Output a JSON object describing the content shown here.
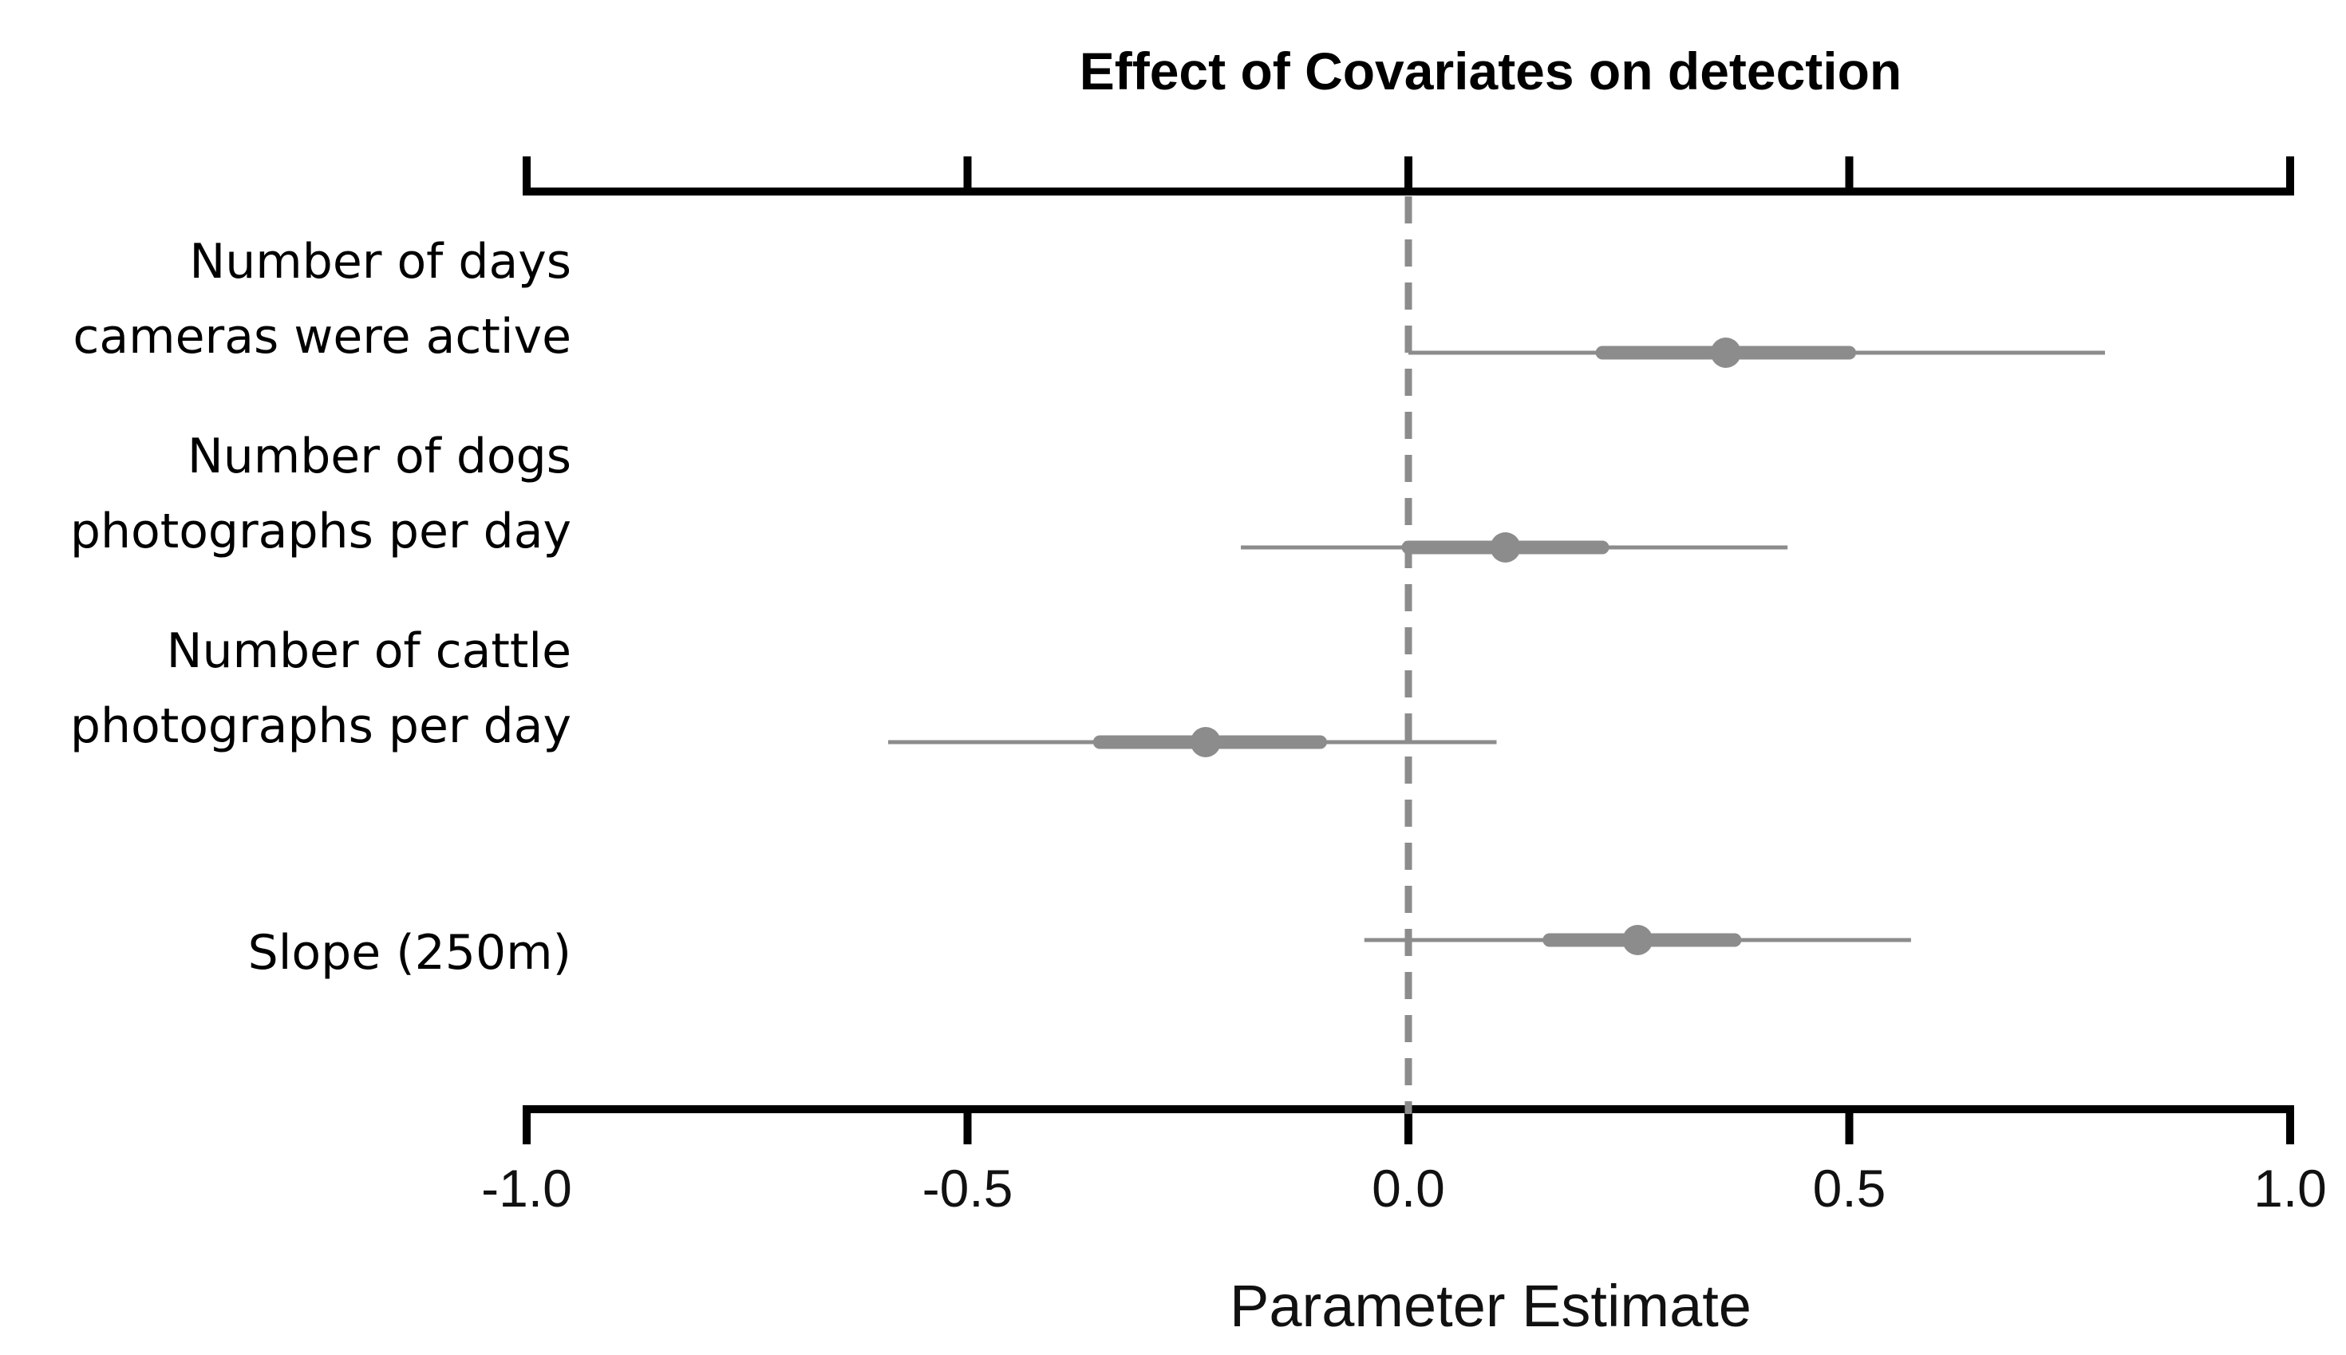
{
  "chart_data": {
    "type": "forest",
    "title": "Effect of Covariates on detection",
    "xlabel": "Parameter Estimate",
    "ylabel": "",
    "xlim": [
      -1.0,
      1.0
    ],
    "xticks": [
      -1.0,
      -0.5,
      0.0,
      0.5,
      1.0
    ],
    "xtick_labels": [
      "-1.0",
      "-0.5",
      "0.0",
      "0.5",
      "1.0"
    ],
    "reference_line": 0.0,
    "mark_color": "#8c8c8c",
    "axis_color": "#000000",
    "covariates": [
      {
        "label_lines": [
          "Number of days",
          "cameras were active"
        ],
        "estimate": 0.36,
        "ci_inner": [
          0.22,
          0.5
        ],
        "ci_outer": [
          0.0,
          0.79
        ]
      },
      {
        "label_lines": [
          "Number of dogs",
          "photographs per day"
        ],
        "estimate": 0.11,
        "ci_inner": [
          0.0,
          0.22
        ],
        "ci_outer": [
          -0.19,
          0.43
        ]
      },
      {
        "label_lines": [
          "Number of cattle",
          "photographs per day"
        ],
        "estimate": -0.23,
        "ci_inner": [
          -0.35,
          -0.1
        ],
        "ci_outer": [
          -0.59,
          0.1
        ]
      },
      {
        "label_lines": [
          "Slope (250m)"
        ],
        "estimate": 0.26,
        "ci_inner": [
          0.16,
          0.37
        ],
        "ci_outer": [
          -0.05,
          0.57
        ]
      }
    ]
  }
}
